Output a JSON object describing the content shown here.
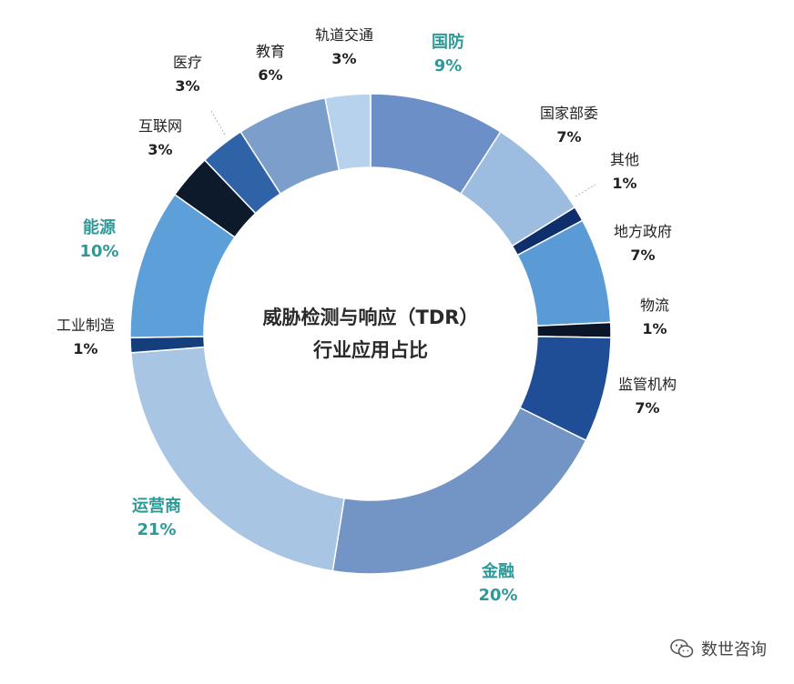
{
  "colors": {
    "highlight": "#2e9a97"
  },
  "chart_data": {
    "type": "pie",
    "donut": true,
    "title_lines": [
      "威胁检测与响应（TDR）",
      "行业应用占比"
    ],
    "slices": [
      {
        "label": "国防",
        "pct_text": "9%",
        "value": 9,
        "color": "#6b8fc6",
        "highlight": true
      },
      {
        "label": "国家部委",
        "pct_text": "7%",
        "value": 7,
        "color": "#9dbde0",
        "highlight": false
      },
      {
        "label": "其他",
        "pct_text": "1%",
        "value": 1,
        "color": "#0e2f6b",
        "highlight": false
      },
      {
        "label": "地方政府",
        "pct_text": "7%",
        "value": 7,
        "color": "#5b9bd5",
        "highlight": false
      },
      {
        "label": "物流",
        "pct_text": "1%",
        "value": 1,
        "color": "#0a1628",
        "highlight": false
      },
      {
        "label": "监管机构",
        "pct_text": "7%",
        "value": 7,
        "color": "#1f4e96",
        "highlight": false
      },
      {
        "label": "金融",
        "pct_text": "20%",
        "value": 20,
        "color": "#7295c6",
        "highlight": true
      },
      {
        "label": "运营商",
        "pct_text": "21%",
        "value": 21,
        "color": "#a8c6e4",
        "highlight": true
      },
      {
        "label": "工业制造",
        "pct_text": "1%",
        "value": 1,
        "color": "#143f7c",
        "highlight": false
      },
      {
        "label": "能源",
        "pct_text": "10%",
        "value": 10,
        "color": "#5d9fd8",
        "highlight": true
      },
      {
        "label": "互联网",
        "pct_text": "3%",
        "value": 3,
        "color": "#0c1a2c",
        "highlight": false
      },
      {
        "label": "医疗",
        "pct_text": "3%",
        "value": 3,
        "color": "#2e63a8",
        "highlight": false
      },
      {
        "label": "教育",
        "pct_text": "6%",
        "value": 6,
        "color": "#7b9ecb",
        "highlight": false
      },
      {
        "label": "轨道交通",
        "pct_text": "3%",
        "value": 3,
        "color": "#b6d2ec",
        "highlight": false
      }
    ]
  },
  "watermark": {
    "text": "数世咨询",
    "icon": "wechat-icon"
  }
}
